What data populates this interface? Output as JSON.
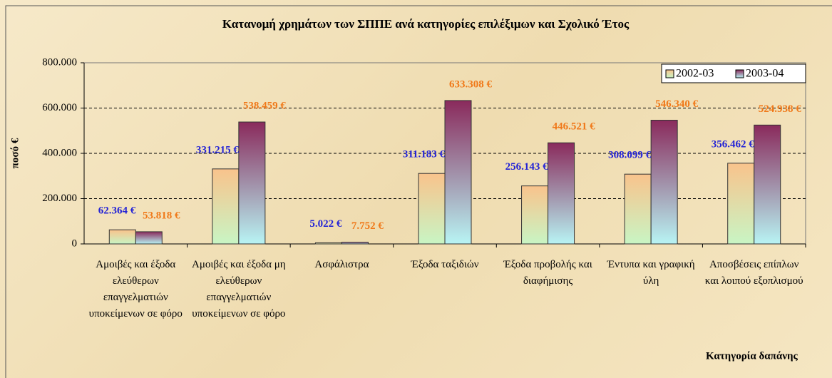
{
  "chart_data": {
    "type": "bar",
    "title": "Κατανομή χρημάτων των ΣΠΠΕ ανά κατηγορίες επιλέξιμων και Σχολικό Έτος",
    "y_label": "ποσό   €",
    "x_label": "Κατηγορία δαπάνης",
    "categories": [
      "Αμοιβές και έξοδα ελεύθερων επαγγελματιών υποκείμενων σε φόρο",
      "Αμοιβές και έξοδα μη ελεύθερων επαγγελματιών υποκείμενων σε φόρο",
      "Ασφάλιστρα",
      "Έξοδα ταξιδιών",
      "Έξοδα προβολής και διαφήμισης",
      "Έντυπα και γραφική ύλη",
      "Αποσβέσεις επίπλων και λοιπού εξοπλισμού"
    ],
    "series": [
      {
        "name": "2002-03",
        "gradient": [
          "#f9c38c",
          "#c8f5c4"
        ],
        "label_color": "#2323d6",
        "values": [
          62364,
          331215,
          5022,
          311183,
          256143,
          308099,
          356462
        ],
        "value_labels": [
          "62.364 €",
          "331.215 €",
          "5.022 €",
          "311.183 €",
          "256.143 €",
          "308.099 €",
          "356.462 €"
        ]
      },
      {
        "name": "2003-04",
        "gradient": [
          "#8a2a5c",
          "#b8f4f4"
        ],
        "label_color": "#f07818",
        "values": [
          53818,
          538459,
          7752,
          633308,
          446521,
          546340,
          524938
        ],
        "value_labels": [
          "53.818 €",
          "538.459 €",
          "7.752 €",
          "633.308 €",
          "446.521 €",
          "546.340 €",
          "524.938 €"
        ]
      }
    ],
    "ylim": [
      0,
      800000
    ],
    "yticks": [
      0,
      {
        "value": 200000,
        "label": "200.000"
      },
      {
        "value": 400000,
        "label": "400.000"
      },
      {
        "value": 600000,
        "label": "600.000"
      },
      {
        "value": 800000,
        "label": "800.000"
      }
    ],
    "grid": true,
    "legend": "top-right"
  }
}
